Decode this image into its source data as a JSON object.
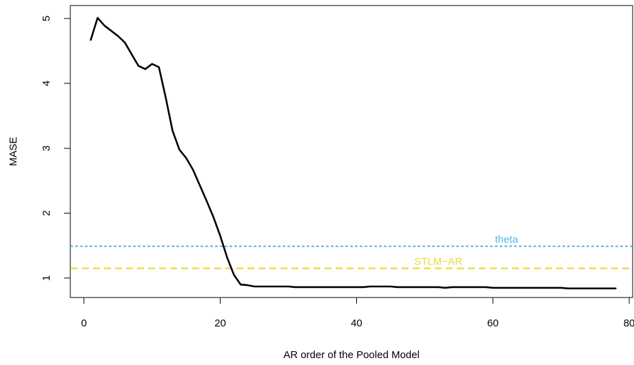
{
  "chart_data": {
    "type": "line",
    "title": "",
    "xlabel": "AR order of the Pooled Model",
    "ylabel": "MASE",
    "xlim": [
      -2,
      80.5
    ],
    "ylim": [
      0.7,
      5.2
    ],
    "x_ticks": [
      0,
      20,
      40,
      60,
      80
    ],
    "y_ticks": [
      1,
      2,
      3,
      4,
      5
    ],
    "grid": false,
    "series": [
      {
        "color": "#000000",
        "x": [
          1,
          2,
          3,
          4,
          5,
          6,
          7,
          8,
          9,
          10,
          11,
          12,
          13,
          14,
          15,
          16,
          17,
          18,
          19,
          20,
          21,
          22,
          23,
          24,
          25,
          26,
          27,
          28,
          29,
          30,
          31,
          32,
          33,
          34,
          35,
          36,
          37,
          38,
          39,
          40,
          41,
          42,
          43,
          44,
          45,
          46,
          47,
          48,
          49,
          50,
          51,
          52,
          53,
          54,
          55,
          56,
          57,
          58,
          59,
          60,
          61,
          62,
          63,
          64,
          65,
          66,
          67,
          68,
          69,
          70,
          71,
          72,
          73,
          74,
          75,
          76,
          77,
          78
        ],
        "y": [
          4.67,
          5.01,
          4.89,
          4.81,
          4.73,
          4.63,
          4.45,
          4.27,
          4.22,
          4.3,
          4.25,
          3.78,
          3.27,
          2.98,
          2.85,
          2.67,
          2.43,
          2.19,
          1.94,
          1.65,
          1.32,
          1.05,
          0.9,
          0.89,
          0.87,
          0.87,
          0.87,
          0.87,
          0.87,
          0.87,
          0.86,
          0.86,
          0.86,
          0.86,
          0.86,
          0.86,
          0.86,
          0.86,
          0.86,
          0.86,
          0.86,
          0.87,
          0.87,
          0.87,
          0.87,
          0.86,
          0.86,
          0.86,
          0.86,
          0.86,
          0.86,
          0.86,
          0.85,
          0.86,
          0.86,
          0.86,
          0.86,
          0.86,
          0.86,
          0.85,
          0.85,
          0.85,
          0.85,
          0.85,
          0.85,
          0.85,
          0.85,
          0.85,
          0.85,
          0.85,
          0.84,
          0.84,
          0.84,
          0.84,
          0.84,
          0.84,
          0.84,
          0.84
        ]
      }
    ],
    "reference_lines": [
      {
        "label": "theta",
        "y": 1.49,
        "color": "#56B4E9",
        "style": "dotted",
        "label_x": 62
      },
      {
        "label": "STLM−AR",
        "y": 1.15,
        "color": "#E8DB38",
        "style": "dashed",
        "label_x": 52
      }
    ]
  }
}
